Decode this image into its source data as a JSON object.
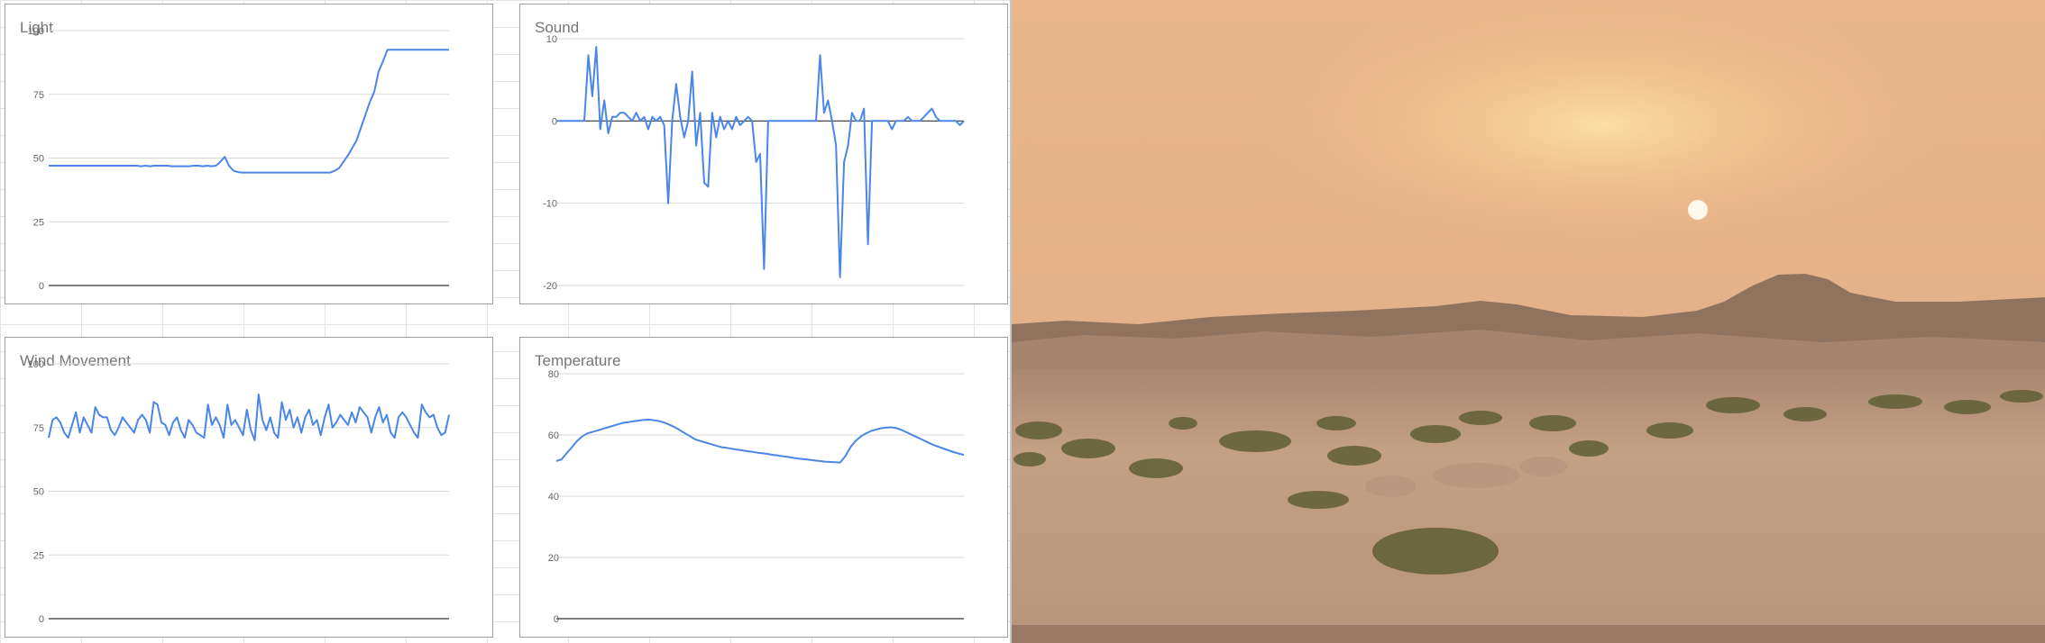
{
  "charts": [
    {
      "id": "light",
      "title": "Light",
      "chart_data": {
        "type": "line",
        "title": "Light",
        "xlabel": "",
        "ylabel": "",
        "ylim": [
          0,
          100
        ],
        "yticks": [
          0,
          25,
          50,
          75,
          100
        ],
        "grid": true,
        "series_color": "#4a86e8",
        "values": [
          47,
          47,
          47,
          47,
          47,
          47,
          47,
          47,
          47,
          47,
          47,
          47,
          47,
          47,
          47,
          47,
          47,
          47,
          47,
          47,
          47,
          46.8,
          47,
          46.8,
          47,
          47,
          47,
          47,
          46.8,
          46.8,
          46.8,
          46.8,
          46.8,
          47,
          47,
          46.8,
          47,
          46.8,
          47,
          48.5,
          50.5,
          47,
          45,
          44.5,
          44.3,
          44.3,
          44.3,
          44.3,
          44.3,
          44.3,
          44.3,
          44.3,
          44.3,
          44.3,
          44.3,
          44.3,
          44.3,
          44.3,
          44.3,
          44.3,
          44.3,
          44.3,
          44.3,
          44.3,
          44.3,
          45,
          46,
          48.5,
          51,
          54,
          57,
          62,
          67,
          72,
          76,
          84,
          88,
          92.5,
          92.5,
          92.5,
          92.5,
          92.5,
          92.5,
          92.5,
          92.5,
          92.5,
          92.5,
          92.5,
          92.5,
          92.5,
          92.5,
          92.5
        ]
      }
    },
    {
      "id": "sound",
      "title": "Sound",
      "chart_data": {
        "type": "line",
        "title": "Sound",
        "xlabel": "",
        "ylabel": "",
        "ylim": [
          -20,
          10
        ],
        "yticks": [
          -20,
          -10,
          0,
          10
        ],
        "grid": true,
        "series_color": "#4a86e8",
        "values": [
          0,
          0,
          0,
          0,
          0,
          0,
          0,
          0,
          8,
          3,
          9,
          -1,
          2.5,
          -1.5,
          0.5,
          0.5,
          1,
          1,
          0.5,
          0,
          1,
          0,
          0.5,
          -1,
          0.5,
          0,
          0.5,
          -0.5,
          -10,
          0,
          4.5,
          0.5,
          -2,
          0,
          6,
          -3,
          1,
          -7.5,
          -8,
          1,
          -2,
          0.5,
          -1,
          0,
          -1,
          0.5,
          -0.5,
          0,
          0.5,
          0,
          -5,
          -4,
          -18,
          0,
          0,
          0,
          0,
          0,
          0,
          0,
          0,
          0,
          0,
          0,
          0,
          0,
          8,
          1,
          2.5,
          0,
          -3,
          -19,
          -5,
          -3,
          1,
          0,
          0,
          1.5,
          -15,
          0,
          0,
          0,
          0,
          0,
          -1,
          0,
          0,
          0,
          0.5,
          0,
          0,
          0,
          0.5,
          1,
          1.5,
          0.5,
          0,
          0,
          0,
          0,
          0,
          -0.5,
          0
        ]
      }
    },
    {
      "id": "wind",
      "title": "Wind Movement",
      "chart_data": {
        "type": "line",
        "title": "Wind Movement",
        "xlabel": "",
        "ylabel": "",
        "ylim": [
          0,
          100
        ],
        "yticks": [
          0,
          25,
          50,
          75,
          100
        ],
        "grid": true,
        "series_color": "#4a86e8",
        "values": [
          71,
          78,
          79,
          77,
          73,
          71,
          76,
          81,
          73,
          79,
          76,
          73,
          83,
          80,
          79,
          79,
          74,
          72,
          75,
          79,
          77,
          75,
          73,
          78,
          80,
          78,
          73,
          85,
          84,
          77,
          76,
          72,
          77,
          79,
          74,
          71,
          78,
          76,
          73,
          72,
          71,
          84,
          76,
          79,
          76,
          71,
          84,
          76,
          78,
          75,
          72,
          82,
          74,
          70,
          88,
          78,
          74,
          79,
          73,
          71,
          85,
          78,
          82,
          75,
          79,
          73,
          79,
          82,
          76,
          78,
          72,
          79,
          84,
          75,
          77,
          80,
          78,
          76,
          81,
          77,
          83,
          81,
          79,
          73,
          79,
          83,
          77,
          80,
          73,
          71,
          79,
          81,
          79,
          76,
          73,
          71,
          84,
          81,
          79,
          80,
          75,
          72,
          73,
          80
        ]
      }
    },
    {
      "id": "temperature",
      "title": "Temperature",
      "chart_data": {
        "type": "line",
        "title": "Temperature",
        "xlabel": "",
        "ylabel": "",
        "ylim": [
          0,
          80
        ],
        "yticks": [
          0,
          20,
          40,
          60,
          80
        ],
        "grid": true,
        "series_color": "#4a86e8",
        "values": [
          51.5,
          52,
          54,
          56,
          58,
          59.5,
          60.5,
          61,
          61.5,
          62,
          62.5,
          63,
          63.5,
          64,
          64.2,
          64.5,
          64.7,
          64.9,
          65,
          64.8,
          64.5,
          64,
          63.3,
          62.5,
          61.5,
          60.5,
          59.5,
          58.5,
          58,
          57.5,
          57,
          56.5,
          56,
          55.8,
          55.5,
          55.2,
          55,
          54.7,
          54.5,
          54.2,
          54,
          53.8,
          53.5,
          53.3,
          53,
          52.8,
          52.5,
          52.3,
          52.1,
          51.9,
          51.7,
          51.5,
          51.3,
          51.2,
          51.1,
          51,
          53,
          56,
          58,
          59.5,
          60.5,
          61.3,
          61.8,
          62.2,
          62.4,
          62.5,
          62.2,
          61.6,
          60.8,
          60,
          59.2,
          58.4,
          57.6,
          56.8,
          56.2,
          55.6,
          55,
          54.4,
          53.9,
          53.5
        ]
      }
    }
  ],
  "photo": {
    "kind": "desert landscape at sunset",
    "sky_top": "#e8b888",
    "sky_glow": "#f7c98a",
    "sun": "#fff6e8",
    "hills": "#8b6f5c",
    "ground": "#c29e80",
    "shrubs": "#5e6034"
  }
}
